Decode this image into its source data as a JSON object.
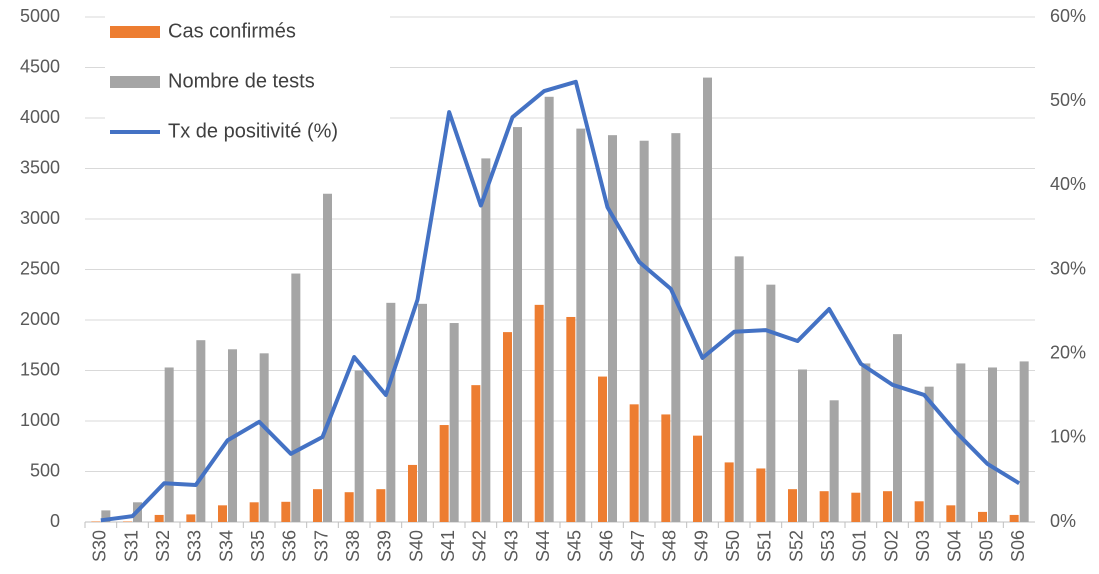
{
  "chart_data": {
    "type": "bar",
    "categories": [
      "S30",
      "S31",
      "S32",
      "S33",
      "S34",
      "S35",
      "S36",
      "S37",
      "S38",
      "S39",
      "S40",
      "S41",
      "S42",
      "S43",
      "S44",
      "S45",
      "S46",
      "S47",
      "S48",
      "S49",
      "S50",
      "S51",
      "S52",
      "S53",
      "S01",
      "S02",
      "S03",
      "S04",
      "S05",
      "S06"
    ],
    "series": [
      {
        "name": "Cas confirmés",
        "color": "#ed7d31",
        "values": [
          5,
          5,
          70,
          75,
          165,
          195,
          200,
          325,
          295,
          325,
          565,
          960,
          1355,
          1880,
          2150,
          2030,
          1440,
          1165,
          1065,
          855,
          590,
          530,
          325,
          305,
          290,
          305,
          205,
          165,
          100,
          70
        ]
      },
      {
        "name": "Nombre de tests",
        "color": "#a5a5a5",
        "values": [
          115,
          195,
          1530,
          1800,
          1710,
          1670,
          2460,
          3250,
          1500,
          2170,
          2160,
          1970,
          3600,
          3910,
          4210,
          3895,
          3830,
          3775,
          3850,
          4400,
          2630,
          2350,
          1510,
          1205,
          1570,
          1860,
          1340,
          1570,
          1530,
          1590
        ]
      },
      {
        "name": "Tx de positivité (%)",
        "color": "#4472c4",
        "type": "line",
        "axis": "y2",
        "values": [
          0.2,
          0.7,
          4.6,
          4.4,
          9.7,
          11.9,
          8.1,
          10.1,
          19.6,
          15.1,
          26.4,
          48.7,
          37.6,
          48.1,
          51.2,
          52.3,
          37.4,
          30.9,
          27.7,
          19.5,
          22.6,
          22.8,
          21.5,
          25.3,
          18.8,
          16.3,
          15.1,
          10.7,
          6.9,
          4.6
        ]
      }
    ],
    "ylim": [
      0,
      5000
    ],
    "yticks": [
      0,
      500,
      1000,
      1500,
      2000,
      2500,
      3000,
      3500,
      4000,
      4500,
      5000
    ],
    "y2lim": [
      0,
      60
    ],
    "y2ticks": [
      {
        "value": 0,
        "label": "0%"
      },
      {
        "value": 10,
        "label": "10%"
      },
      {
        "value": 20,
        "label": "20%"
      },
      {
        "value": 30,
        "label": "30%"
      },
      {
        "value": 40,
        "label": "40%"
      },
      {
        "value": 50,
        "label": "50%"
      },
      {
        "value": 60,
        "label": "60%"
      }
    ],
    "grid": true,
    "legend": "upper-left"
  }
}
